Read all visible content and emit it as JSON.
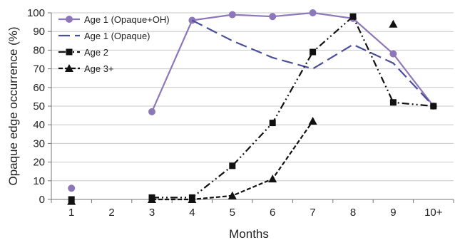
{
  "chart_data": {
    "type": "line",
    "title": "",
    "xlabel": "Months",
    "ylabel": "Opaque edge occurrence (%)",
    "categories": [
      "1",
      "2",
      "3",
      "4",
      "5",
      "6",
      "7",
      "8",
      "9",
      "10+"
    ],
    "ylim": [
      0,
      100
    ],
    "yticks": [
      0,
      10,
      20,
      30,
      40,
      50,
      60,
      70,
      80,
      90,
      100
    ],
    "grid": true,
    "legend_position": "top-left",
    "series": [
      {
        "name": "Age 1 (Opaque+OH)",
        "values": [
          6,
          null,
          47,
          96,
          99,
          98,
          100,
          97,
          78,
          50
        ],
        "color": "#8e77b9",
        "dash": "solid",
        "marker": "circle"
      },
      {
        "name": "Age 1 (Opaque)",
        "values": [
          null,
          null,
          null,
          96,
          85,
          76,
          70,
          83,
          73,
          50
        ],
        "color": "#4a4f9c",
        "dash": "long-dash",
        "marker": "none"
      },
      {
        "name": "Age 2",
        "values": [
          0,
          null,
          1,
          1,
          18,
          41,
          79,
          98,
          52,
          50
        ],
        "color": "#111111",
        "dash": "dash-dot-dot",
        "marker": "square"
      },
      {
        "name": "Age 3+",
        "values": [
          -1,
          null,
          0,
          0,
          2,
          11,
          42,
          null,
          94,
          null
        ],
        "color": "#111111",
        "dash": "short-dash",
        "marker": "triangle"
      }
    ]
  }
}
